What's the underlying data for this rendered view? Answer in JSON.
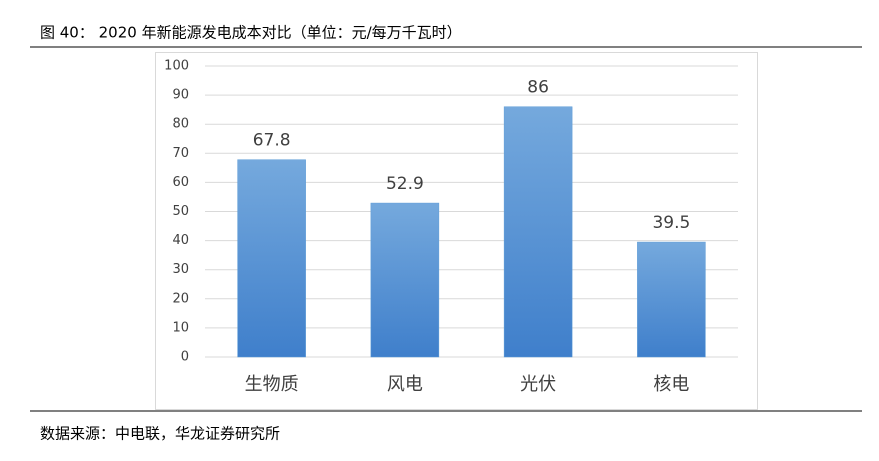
{
  "chart_data": {
    "type": "bar",
    "title": "图 40： 2020 年新能源发电成本对比（单位：元/每万千瓦时）",
    "source": "数据来源：中电联，华龙证券研究所",
    "categories": [
      "生物质",
      "风电",
      "光伏",
      "核电"
    ],
    "values": [
      67.8,
      52.9,
      86,
      39.5
    ],
    "color": "#5b9bd5",
    "ylim": [
      0,
      100
    ],
    "yticks": [
      0,
      10,
      20,
      30,
      40,
      50,
      60,
      70,
      80,
      90,
      100
    ],
    "grid": true
  }
}
